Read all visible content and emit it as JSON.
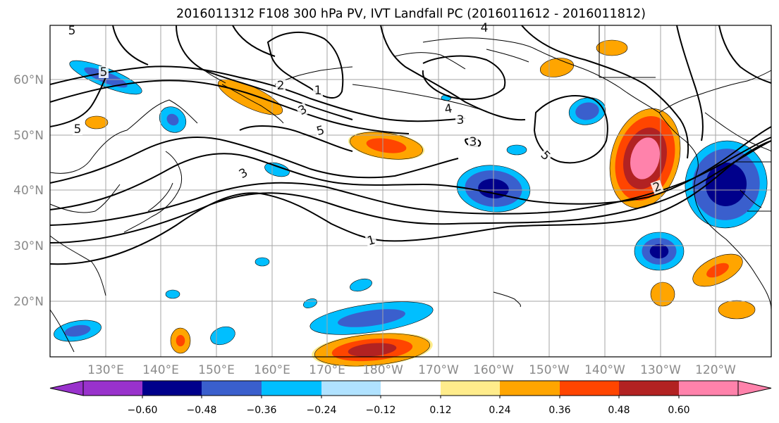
{
  "title": "2016011312 F108 300 hPa PV, IVT Landfall PC (2016011612 - 2016011812)",
  "lat_labels": [
    "60°N",
    "50°N",
    "40°N",
    "30°N",
    "20°N"
  ],
  "lon_labels": [
    "130°E",
    "140°E",
    "150°E",
    "160°E",
    "170°E",
    "180°W",
    "170°W",
    "160°W",
    "150°W",
    "140°W",
    "130°W",
    "120°W"
  ],
  "contour_labels": [
    "5",
    "5",
    "5",
    "1",
    "2",
    "3",
    "5",
    "4",
    "3",
    "5",
    "3",
    "1",
    "2",
    "4",
    "3"
  ],
  "colorbar": {
    "tick_labels": [
      "−0.60",
      "−0.48",
      "−0.36",
      "−0.24",
      "−0.12",
      "0.12",
      "0.24",
      "0.36",
      "0.48",
      "0.60"
    ],
    "colors": [
      "#9932cc",
      "#00008b",
      "#3a5fcd",
      "#00bfff",
      "#b0e2ff",
      "#ffffff",
      "#ffec8b",
      "#ffa500",
      "#ff4500",
      "#b22222",
      "#ff82ab"
    ]
  },
  "palette": {
    "neg_deep": "#00008b",
    "neg_mid": "#3a5fcd",
    "neg_light": "#00bfff",
    "neg_pale": "#b0e2ff",
    "pos_pale": "#ffec8b",
    "pos_light": "#ffa500",
    "pos_mid": "#ff4500",
    "pos_deep": "#b22222",
    "pos_max": "#ff82ab"
  }
}
